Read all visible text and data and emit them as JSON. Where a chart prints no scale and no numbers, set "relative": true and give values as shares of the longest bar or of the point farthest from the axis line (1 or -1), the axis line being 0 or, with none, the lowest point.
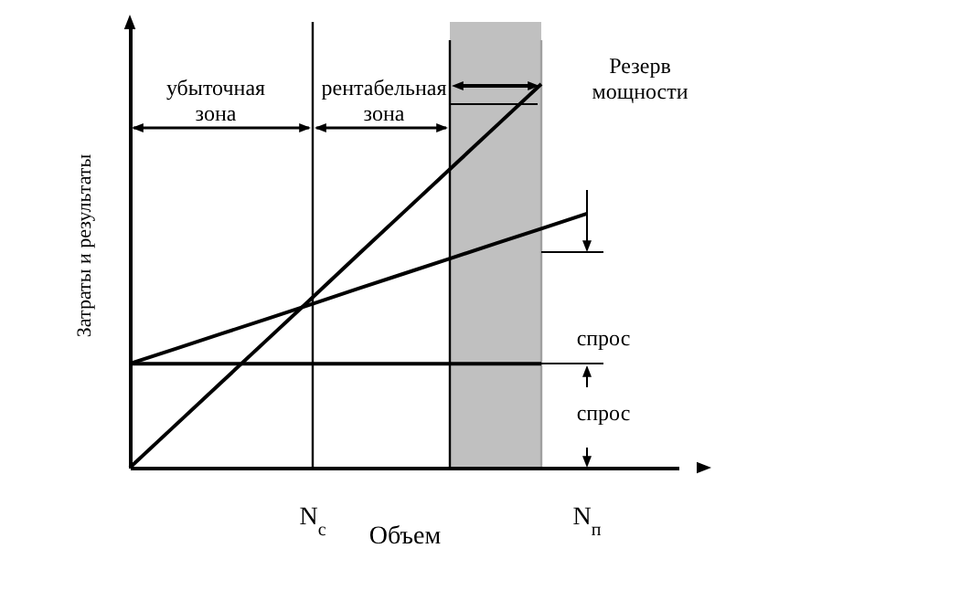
{
  "chart_data": {
    "type": "line",
    "relative": true,
    "xlabel": "Объем",
    "ylabel": "Затраты и результаты",
    "categories": [
      null,
      null,
      null,
      null,
      "N$_{с}$",
      null,
      null,
      null,
      null,
      null,
      "N$_{п}$",
      null,
      null
    ],
    "tick_labels": "x",
    "marker": "none",
    "line_style": "solid",
    "series": [
      {
        "color": "#000000",
        "values": [
          0,
          0.111,
          0.222,
          0.333,
          0.444,
          0.556,
          0.667,
          0.778,
          0.889,
          1,
          null,
          null,
          null
        ]
      },
      {
        "color": "#000000",
        "values": [
          0.271,
          0.31,
          0.349,
          0.388,
          0.427,
          0.467,
          0.506,
          0.545,
          0.584,
          0.623,
          0.662,
          null,
          null
        ]
      },
      {
        "color": "#000000",
        "values": [
          0.271,
          0.271,
          0.271,
          0.271,
          0.271,
          0.271,
          0.271,
          0.271,
          0.271,
          0.271,
          null,
          null,
          null
        ]
      }
    ],
    "ref_lines": [
      {
        "axis": "x",
        "value": "N$_{с}$",
        "color": "#000000"
      }
    ],
    "annotations": [
      "убыточная зона",
      "рентабельная зона",
      "Резерв мощности",
      "спрос",
      "спрос"
    ]
  }
}
